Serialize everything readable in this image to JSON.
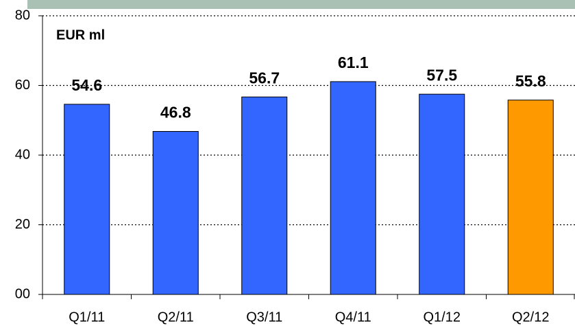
{
  "chart_data": {
    "type": "bar",
    "annotation": "EUR ml",
    "categories": [
      "Q1/11",
      "Q2/11",
      "Q3/11",
      "Q4/11",
      "Q1/12",
      "Q2/12"
    ],
    "values": [
      54.6,
      46.8,
      56.7,
      61.1,
      57.5,
      55.8
    ],
    "colors": [
      "#3366ff",
      "#3366ff",
      "#3366ff",
      "#3366ff",
      "#3366ff",
      "#ff9900"
    ],
    "ylim": [
      0,
      80
    ],
    "yticks": [
      {
        "value": 0,
        "label": "00"
      },
      20,
      40,
      60,
      80
    ],
    "grid": true
  }
}
